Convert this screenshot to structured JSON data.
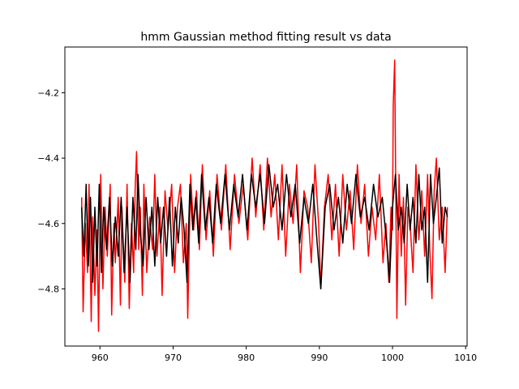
{
  "chart_data": {
    "type": "line",
    "title": "hmm Gaussian method fitting result vs data",
    "xlabel": "",
    "ylabel": "",
    "xlim": [
      955.2,
      1010.2
    ],
    "ylim": [
      -4.975,
      -4.06
    ],
    "xticks": [
      960,
      970,
      980,
      990,
      1000,
      1010
    ],
    "yticks": [
      -4.8,
      -4.6,
      -4.4,
      -4.2
    ],
    "xtick_labels": [
      "960",
      "970",
      "980",
      "990",
      "1000",
      "1010"
    ],
    "ytick_labels": [
      "−4.8",
      "−4.6",
      "−4.4",
      "−4.2"
    ],
    "grid": false,
    "legend": "none",
    "series": [
      {
        "color": "#ff0000",
        "x": [
          957.5,
          957.7,
          958.0,
          958.3,
          958.5,
          958.8,
          959.0,
          959.3,
          959.6,
          959.8,
          960.1,
          960.4,
          960.7,
          961.0,
          961.4,
          961.6,
          961.9,
          962.1,
          962.5,
          962.8,
          963.0,
          963.4,
          963.7,
          964.0,
          964.3,
          964.6,
          964.8,
          965.0,
          965.3,
          965.5,
          965.8,
          966.0,
          966.4,
          966.8,
          967.2,
          967.5,
          967.8,
          968.2,
          968.5,
          968.9,
          969.3,
          969.8,
          970.2,
          970.6,
          971.0,
          971.4,
          971.8,
          972.0,
          972.4,
          972.8,
          973.2,
          973.6,
          974.0,
          974.5,
          975.0,
          975.5,
          976.0,
          976.6,
          977.2,
          977.8,
          978.4,
          979.0,
          979.6,
          980.2,
          980.8,
          981.3,
          981.9,
          982.4,
          982.9,
          983.4,
          983.9,
          984.4,
          984.9,
          985.4,
          985.9,
          986.4,
          986.9,
          987.4,
          987.9,
          988.4,
          988.9,
          989.4,
          989.9,
          990.2,
          990.7,
          991.2,
          991.7,
          992.2,
          992.7,
          993.2,
          993.7,
          994.2,
          994.7,
          995.2,
          995.7,
          996.2,
          996.7,
          997.2,
          997.7,
          998.2,
          998.7,
          999.1,
          999.5,
          999.8,
          1000.0,
          1000.1,
          1000.3,
          1000.6,
          1000.9,
          1001.2,
          1001.5,
          1001.8,
          1002.1,
          1002.4,
          1002.8,
          1003.2,
          1003.6,
          1004.0,
          1004.4,
          1004.8,
          1005.1,
          1005.4,
          1005.7,
          1006.0,
          1006.4,
          1006.8,
          1007.2,
          1007.5
        ],
        "y": [
          -4.52,
          -4.87,
          -4.6,
          -4.75,
          -4.48,
          -4.9,
          -4.58,
          -4.82,
          -4.62,
          -4.93,
          -4.45,
          -4.8,
          -4.55,
          -4.7,
          -4.48,
          -4.88,
          -4.6,
          -4.72,
          -4.52,
          -4.85,
          -4.55,
          -4.78,
          -4.48,
          -4.86,
          -4.6,
          -4.75,
          -4.5,
          -4.38,
          -4.68,
          -4.55,
          -4.82,
          -4.48,
          -4.75,
          -4.58,
          -4.68,
          -4.45,
          -4.7,
          -4.55,
          -4.82,
          -4.5,
          -4.62,
          -4.48,
          -4.75,
          -4.55,
          -4.48,
          -4.72,
          -4.6,
          -4.89,
          -4.45,
          -4.62,
          -4.5,
          -4.68,
          -4.42,
          -4.65,
          -4.5,
          -4.7,
          -4.45,
          -4.62,
          -4.42,
          -4.68,
          -4.45,
          -4.6,
          -4.48,
          -4.65,
          -4.4,
          -4.58,
          -4.42,
          -4.62,
          -4.4,
          -4.58,
          -4.45,
          -4.65,
          -4.42,
          -4.7,
          -4.48,
          -4.6,
          -4.42,
          -4.75,
          -4.5,
          -4.55,
          -4.72,
          -4.42,
          -4.6,
          -4.8,
          -4.55,
          -4.45,
          -4.65,
          -4.48,
          -4.7,
          -4.45,
          -4.62,
          -4.5,
          -4.68,
          -4.42,
          -4.6,
          -4.48,
          -4.7,
          -4.55,
          -4.65,
          -4.45,
          -4.72,
          -4.6,
          -4.78,
          -4.55,
          -4.62,
          -4.24,
          -4.1,
          -4.89,
          -4.45,
          -4.7,
          -4.52,
          -4.85,
          -4.55,
          -4.6,
          -4.75,
          -4.42,
          -4.65,
          -4.5,
          -4.7,
          -4.45,
          -4.68,
          -4.83,
          -4.5,
          -4.4,
          -4.65,
          -4.55,
          -4.75,
          -4.55
        ]
      },
      {
        "color": "#000000",
        "x": [
          957.5,
          957.8,
          958.1,
          958.4,
          958.7,
          959.0,
          959.3,
          959.6,
          959.9,
          960.2,
          960.5,
          960.9,
          961.3,
          961.7,
          962.1,
          962.5,
          962.9,
          963.3,
          963.7,
          964.1,
          964.5,
          964.9,
          965.2,
          965.5,
          965.9,
          966.3,
          966.7,
          967.1,
          967.5,
          967.9,
          968.3,
          968.7,
          969.1,
          969.5,
          969.9,
          970.3,
          970.7,
          971.1,
          971.5,
          971.9,
          972.3,
          972.7,
          973.1,
          973.5,
          973.9,
          974.4,
          974.9,
          975.4,
          975.9,
          976.5,
          977.1,
          977.7,
          978.3,
          978.9,
          979.5,
          980.1,
          980.7,
          981.3,
          981.9,
          982.5,
          983.1,
          983.7,
          984.3,
          984.9,
          985.5,
          986.1,
          986.7,
          987.3,
          987.9,
          988.5,
          989.1,
          989.7,
          990.2,
          990.8,
          991.4,
          992.0,
          992.6,
          993.2,
          993.8,
          994.4,
          995.0,
          995.6,
          996.2,
          996.8,
          997.4,
          998.0,
          998.6,
          999.2,
          999.6,
          1000.0,
          1000.4,
          1000.8,
          1001.2,
          1001.6,
          1002.0,
          1002.4,
          1002.8,
          1003.2,
          1003.6,
          1004.0,
          1004.4,
          1004.8,
          1005.2,
          1005.6,
          1006.0,
          1006.4,
          1006.8,
          1007.2,
          1007.5
        ],
        "y": [
          -4.55,
          -4.7,
          -4.48,
          -4.73,
          -4.52,
          -4.78,
          -4.55,
          -4.73,
          -4.48,
          -4.75,
          -4.55,
          -4.68,
          -4.52,
          -4.73,
          -4.58,
          -4.7,
          -4.52,
          -4.75,
          -4.55,
          -4.78,
          -4.52,
          -4.68,
          -4.45,
          -4.62,
          -4.73,
          -4.52,
          -4.68,
          -4.55,
          -4.73,
          -4.52,
          -4.66,
          -4.55,
          -4.7,
          -4.52,
          -4.73,
          -4.55,
          -4.66,
          -4.52,
          -4.62,
          -4.78,
          -4.48,
          -4.62,
          -4.52,
          -4.66,
          -4.45,
          -4.62,
          -4.52,
          -4.66,
          -4.48,
          -4.6,
          -4.45,
          -4.62,
          -4.48,
          -4.58,
          -4.45,
          -4.62,
          -4.45,
          -4.55,
          -4.45,
          -4.6,
          -4.42,
          -4.55,
          -4.48,
          -4.62,
          -4.45,
          -4.58,
          -4.48,
          -4.66,
          -4.52,
          -4.6,
          -4.48,
          -4.66,
          -4.8,
          -4.55,
          -4.48,
          -4.62,
          -4.52,
          -4.66,
          -4.48,
          -4.6,
          -4.45,
          -4.58,
          -4.52,
          -4.62,
          -4.48,
          -4.58,
          -4.52,
          -4.66,
          -4.78,
          -4.55,
          -4.45,
          -4.62,
          -4.55,
          -4.66,
          -4.48,
          -4.62,
          -4.52,
          -4.66,
          -4.45,
          -4.62,
          -4.55,
          -4.78,
          -4.45,
          -4.6,
          -4.52,
          -4.43,
          -4.66,
          -4.55,
          -4.58
        ]
      }
    ]
  }
}
